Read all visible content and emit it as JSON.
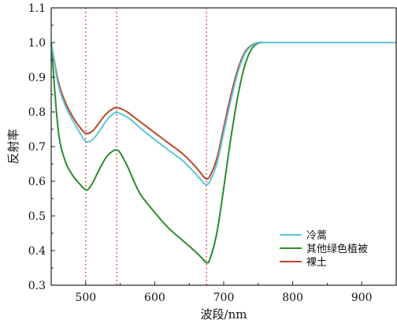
{
  "chart_data": {
    "type": "line",
    "title": "",
    "xlabel": "波段/nm",
    "ylabel": "反射率",
    "xlim": [
      450,
      950
    ],
    "ylim": [
      0.3,
      1.1
    ],
    "xticks": [
      500,
      600,
      700,
      800,
      900
    ],
    "xtick_labels": [
      "500",
      "600",
      "700",
      "800",
      "900"
    ],
    "yticks": [
      0.3,
      0.4,
      0.5,
      0.6,
      0.7,
      0.8,
      0.9,
      1.0,
      1.1
    ],
    "ytick_labels": [
      "0.3",
      "0.4",
      "0.5",
      "0.6",
      "0.7",
      "0.8",
      "0.9",
      "1.0",
      "1.1"
    ],
    "grid": false,
    "legend_position": "bottom-right",
    "reference_lines": {
      "x": [
        500,
        545,
        675
      ],
      "style": "dotted",
      "color": "#e0282d"
    },
    "series": [
      {
        "name": "冷蒿",
        "color": "#5ec6d4",
        "x": [
          450,
          460,
          470,
          480,
          490,
          500,
          510,
          520,
          530,
          540,
          545,
          550,
          560,
          570,
          580,
          600,
          620,
          640,
          660,
          670,
          675,
          680,
          690,
          700,
          710,
          720,
          730,
          740,
          750,
          760,
          780,
          800,
          850,
          900,
          950
        ],
        "y": [
          1.0,
          0.88,
          0.82,
          0.78,
          0.745,
          0.715,
          0.72,
          0.745,
          0.775,
          0.795,
          0.798,
          0.795,
          0.785,
          0.77,
          0.752,
          0.72,
          0.69,
          0.66,
          0.62,
          0.597,
          0.59,
          0.6,
          0.65,
          0.74,
          0.83,
          0.91,
          0.965,
          0.99,
          1.0,
          1.0,
          1.0,
          1.0,
          1.0,
          1.0,
          1.0
        ]
      },
      {
        "name": "其他绿色植被",
        "color": "#2e8b2e",
        "x": [
          450,
          460,
          470,
          480,
          490,
          500,
          505,
          510,
          520,
          530,
          540,
          545,
          550,
          560,
          570,
          580,
          600,
          620,
          640,
          660,
          670,
          675,
          680,
          690,
          700,
          710,
          720,
          730,
          740,
          750,
          760,
          780,
          800,
          850,
          900,
          950
        ],
        "y": [
          1.0,
          0.75,
          0.66,
          0.62,
          0.595,
          0.575,
          0.58,
          0.595,
          0.635,
          0.67,
          0.688,
          0.69,
          0.682,
          0.645,
          0.6,
          0.56,
          0.51,
          0.465,
          0.43,
          0.395,
          0.375,
          0.365,
          0.375,
          0.45,
          0.58,
          0.72,
          0.84,
          0.93,
          0.98,
          0.998,
          1.0,
          1.0,
          1.0,
          1.0,
          1.0,
          1.0
        ]
      },
      {
        "name": "裸土",
        "color": "#b94a2c",
        "x": [
          450,
          460,
          470,
          480,
          490,
          500,
          510,
          520,
          530,
          540,
          545,
          550,
          560,
          570,
          580,
          600,
          620,
          640,
          660,
          670,
          675,
          680,
          690,
          700,
          710,
          720,
          730,
          740,
          750,
          760,
          780,
          800,
          850,
          900,
          950
        ],
        "y": [
          1.0,
          0.89,
          0.83,
          0.79,
          0.76,
          0.738,
          0.745,
          0.77,
          0.795,
          0.81,
          0.812,
          0.81,
          0.8,
          0.785,
          0.77,
          0.74,
          0.71,
          0.68,
          0.64,
          0.615,
          0.607,
          0.615,
          0.665,
          0.755,
          0.845,
          0.92,
          0.97,
          0.992,
          1.0,
          1.0,
          1.0,
          1.0,
          1.0,
          1.0,
          1.0
        ]
      }
    ]
  }
}
